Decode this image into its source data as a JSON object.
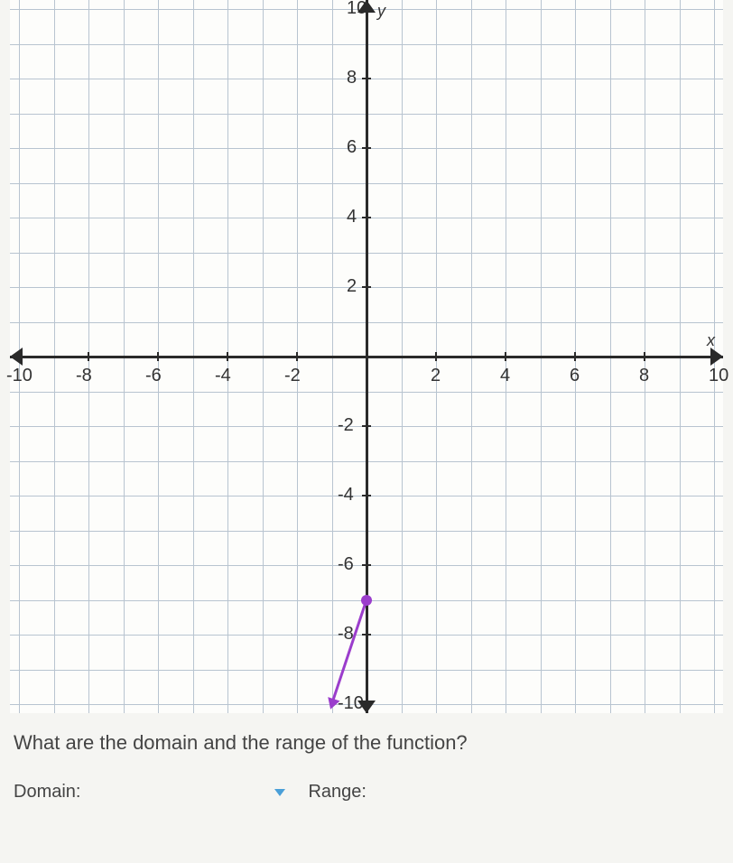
{
  "chart": {
    "type": "line",
    "xlim": [
      -10,
      10
    ],
    "ylim": [
      -10,
      10
    ],
    "x_ticks": [
      -10,
      -8,
      -6,
      -4,
      -2,
      2,
      4,
      6,
      8,
      10
    ],
    "y_ticks": [
      -10,
      -8,
      -6,
      -4,
      -2,
      2,
      4,
      6,
      8,
      10
    ],
    "x_axis_title": "x",
    "y_axis_title": "y",
    "grid_step": 1,
    "grid_color": "#b8c4d0",
    "axis_color": "#2a2a2a",
    "background_color": "#fdfdfb",
    "label_fontsize": 20,
    "function": {
      "color": "#9b3dcc",
      "line_width": 3,
      "points": [
        {
          "x": 0,
          "y": -7,
          "marker": "closed"
        },
        {
          "x": -1,
          "y": -10,
          "marker": "arrow"
        }
      ]
    }
  },
  "question": "What are the domain and the range of the function?",
  "labels": {
    "domain": "Domain:",
    "range": "Range:"
  }
}
